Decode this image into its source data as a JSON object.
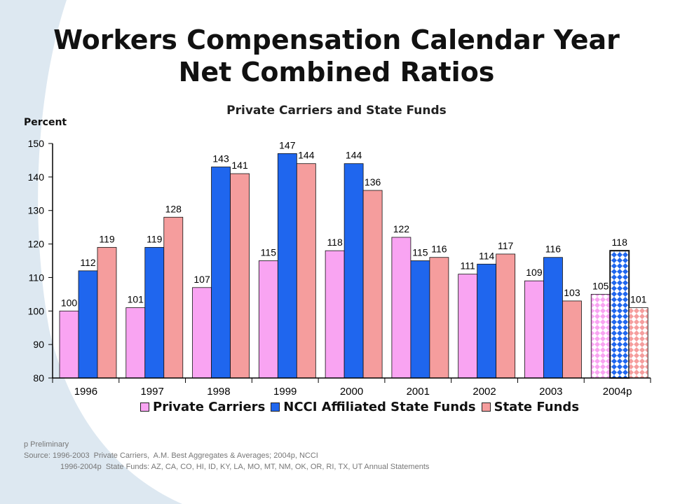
{
  "title_line1": "Workers Compensation Calendar Year",
  "title_line2": "Net Combined Ratios",
  "colors": {
    "private_carriers": "#f9a4f2",
    "ncci_affiliated": "#1f66ee",
    "state_funds": "#f59d9d",
    "background_swoosh": "#dde8f1"
  },
  "chart_data": {
    "type": "bar",
    "title": "Private Carriers and State Funds",
    "ylabel": "Percent",
    "xlabel": "",
    "ylim": [
      80,
      150
    ],
    "yticks": [
      80,
      90,
      100,
      110,
      120,
      130,
      140,
      150
    ],
    "categories": [
      "1996",
      "1997",
      "1998",
      "1999",
      "2000",
      "2001",
      "2002",
      "2003",
      "2004p"
    ],
    "series": [
      {
        "name": "Private Carriers",
        "values": [
          100,
          101,
          107,
          115,
          118,
          122,
          111,
          109,
          105
        ],
        "data_labels": [
          "100",
          "101",
          "107",
          "115",
          "118",
          "122",
          "111",
          "109",
          "105"
        ]
      },
      {
        "name": "NCCI Affiliated State Funds",
        "values": [
          112,
          119,
          143,
          147,
          144,
          115,
          114,
          116,
          118
        ],
        "data_labels": [
          "112",
          "119",
          "143",
          "147",
          "144",
          "115",
          "114",
          "116",
          "118"
        ]
      },
      {
        "name": "State Funds",
        "values": [
          119,
          128,
          141,
          144,
          136,
          116,
          117,
          103,
          101
        ],
        "data_labels": [
          "119",
          "128",
          "141",
          "144",
          "136",
          "116",
          "117",
          "103",
          "101"
        ]
      }
    ],
    "patterned_categories": [
      "2004p"
    ],
    "legend_position": "bottom"
  },
  "notes": {
    "preliminary": "p Preliminary",
    "source1": "Source: 1996-2003  Private Carriers,  A.M. Best Aggregates & Averages; 2004p, NCCI",
    "source2": "1996-2004p  State Funds: AZ, CA, CO, HI, ID, KY, LA, MO, MT, NM, OK, OR, RI, TX, UT Annual Statements"
  }
}
